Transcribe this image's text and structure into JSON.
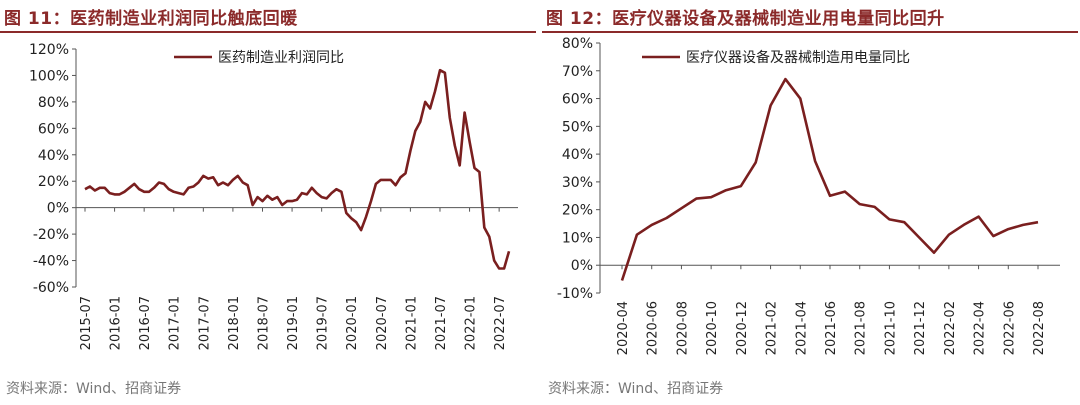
{
  "panels": [
    {
      "title": "图 11：医药制造业利润同比触底回暖",
      "source": "资料来源：Wind、招商证券"
    },
    {
      "title": "图 12：医疗仪器设备及器械制造业用电量同比回升",
      "source": "资料来源：Wind、招商证券"
    }
  ],
  "colors": {
    "line": "#7a1f1f",
    "title": "#8b2a2a",
    "axis": "#555555"
  },
  "chart_data": [
    {
      "type": "line",
      "title": "医药制造业利润同比触底回暖",
      "legend": "医药制造业利润同比",
      "legend_position": "top-left",
      "xlabel": "",
      "ylabel": "",
      "ylim": [
        -60,
        120
      ],
      "yticks": [
        -60,
        -40,
        -20,
        0,
        20,
        40,
        60,
        80,
        100,
        120
      ],
      "ytick_suffix": "%",
      "xticks": [
        "2015-07",
        "2016-01",
        "2016-07",
        "2017-01",
        "2017-07",
        "2018-01",
        "2018-07",
        "2019-01",
        "2019-07",
        "2020-01",
        "2020-07",
        "2021-01",
        "2021-07",
        "2022-01",
        "2022-07"
      ],
      "x_start": "2015-07",
      "grid": false,
      "series": [
        {
          "name": "医药制造业利润同比",
          "values": [
            14,
            16,
            13,
            15,
            15,
            11,
            10,
            10,
            12,
            15,
            18,
            14,
            12,
            12,
            15,
            19,
            18,
            14,
            12,
            11,
            10,
            15,
            16,
            19,
            24,
            22,
            23,
            17,
            19,
            17,
            21,
            24,
            19,
            17,
            2,
            8,
            5,
            9,
            6,
            8,
            2,
            5,
            5,
            6,
            11,
            10,
            15,
            11,
            8,
            7,
            11,
            14,
            12,
            -4,
            -8,
            -11,
            -17,
            -7,
            5,
            18,
            21,
            21,
            21,
            17,
            23,
            26,
            43,
            58,
            65,
            80,
            75,
            88,
            104,
            102,
            68,
            47,
            32,
            72,
            50,
            30,
            27,
            -15,
            -22,
            -40,
            -46,
            -46,
            -33
          ]
        }
      ]
    },
    {
      "type": "line",
      "title": "医疗仪器设备及器械制造业用电量同比回升",
      "legend": "医疗仪器设备及器械制造用电量同比",
      "legend_position": "top-left",
      "xlabel": "",
      "ylabel": "",
      "ylim": [
        -10,
        80
      ],
      "yticks": [
        -10,
        0,
        10,
        20,
        30,
        40,
        50,
        60,
        70,
        80
      ],
      "ytick_suffix": "%",
      "xticks": [
        "2020-04",
        "2020-06",
        "2020-08",
        "2020-10",
        "2020-12",
        "2021-02",
        "2021-04",
        "2021-06",
        "2021-08",
        "2021-10",
        "2021-12",
        "2022-02",
        "2022-04",
        "2022-06",
        "2022-08"
      ],
      "grid": false,
      "series": [
        {
          "name": "医疗仪器设备及器械制造用电量同比",
          "x": [
            "2020-04",
            "2020-05",
            "2020-06",
            "2020-07",
            "2020-08",
            "2020-09",
            "2020-10",
            "2020-11",
            "2020-12",
            "2021-01",
            "2021-02",
            "2021-03",
            "2021-04",
            "2021-05",
            "2021-06",
            "2021-07",
            "2021-08",
            "2021-09",
            "2021-10",
            "2021-11",
            "2021-12",
            "2022-01",
            "2022-02",
            "2022-03",
            "2022-04",
            "2022-05",
            "2022-06",
            "2022-07",
            "2022-08"
          ],
          "values": [
            -5.5,
            11,
            14.5,
            17,
            20.5,
            24,
            24.5,
            27,
            28.5,
            37,
            57.5,
            67,
            60,
            37.5,
            25,
            26.5,
            22,
            21,
            16.5,
            15.5,
            10,
            4.5,
            11,
            14.5,
            17.5,
            10.5,
            13,
            14.5,
            15.5
          ]
        }
      ]
    }
  ]
}
